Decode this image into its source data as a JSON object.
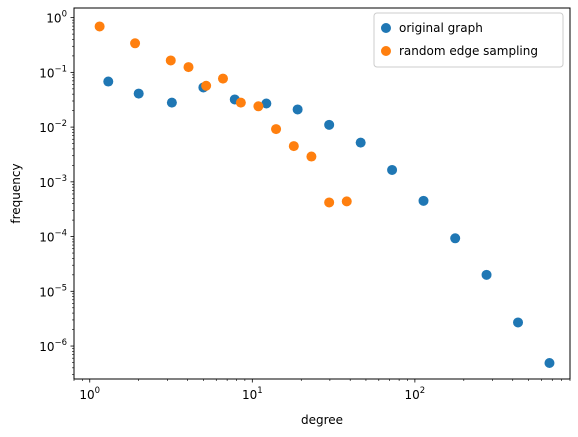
{
  "chart_data": {
    "type": "scatter",
    "title": "",
    "xlabel": "degree",
    "ylabel": "frequency",
    "xscale": "log",
    "yscale": "log",
    "xlim": [
      0.8,
      900
    ],
    "ylim": [
      2.5e-07,
      1.5
    ],
    "grid": false,
    "legend_position": "top-right",
    "x_ticks": [
      {
        "value": 1,
        "base": "10",
        "exp": "0"
      },
      {
        "value": 10,
        "base": "10",
        "exp": "1"
      },
      {
        "value": 100,
        "base": "10",
        "exp": "2"
      }
    ],
    "y_ticks": [
      {
        "value": 1e-06,
        "base": "10",
        "exp": "−6"
      },
      {
        "value": 1e-05,
        "base": "10",
        "exp": "−5"
      },
      {
        "value": 0.0001,
        "base": "10",
        "exp": "−4"
      },
      {
        "value": 0.001,
        "base": "10",
        "exp": "−3"
      },
      {
        "value": 0.01,
        "base": "10",
        "exp": "−2"
      },
      {
        "value": 0.1,
        "base": "10",
        "exp": "−1"
      },
      {
        "value": 1,
        "base": "10",
        "exp": "0"
      }
    ],
    "series": [
      {
        "name": "original graph",
        "color": "#1f77b4",
        "points": [
          {
            "x": 1.3,
            "y": 0.068
          },
          {
            "x": 2.0,
            "y": 0.041
          },
          {
            "x": 3.2,
            "y": 0.028
          },
          {
            "x": 5.0,
            "y": 0.053
          },
          {
            "x": 7.8,
            "y": 0.032
          },
          {
            "x": 12.2,
            "y": 0.027
          },
          {
            "x": 19.0,
            "y": 0.021
          },
          {
            "x": 29.7,
            "y": 0.011
          },
          {
            "x": 46.4,
            "y": 0.0052
          },
          {
            "x": 72.4,
            "y": 0.00165
          },
          {
            "x": 113,
            "y": 0.00045
          },
          {
            "x": 177,
            "y": 9.3e-05
          },
          {
            "x": 276,
            "y": 2e-05
          },
          {
            "x": 431,
            "y": 2.7e-06
          },
          {
            "x": 673,
            "y": 4.9e-07
          }
        ]
      },
      {
        "name": "random edge sampling",
        "color": "#ff7f0e",
        "points": [
          {
            "x": 1.15,
            "y": 0.69
          },
          {
            "x": 1.9,
            "y": 0.34
          },
          {
            "x": 3.15,
            "y": 0.165
          },
          {
            "x": 4.05,
            "y": 0.125
          },
          {
            "x": 5.2,
            "y": 0.057
          },
          {
            "x": 6.6,
            "y": 0.077
          },
          {
            "x": 8.5,
            "y": 0.028
          },
          {
            "x": 10.9,
            "y": 0.024
          },
          {
            "x": 14.0,
            "y": 0.0092
          },
          {
            "x": 18.0,
            "y": 0.0045
          },
          {
            "x": 23.1,
            "y": 0.0029
          },
          {
            "x": 29.7,
            "y": 0.00042
          },
          {
            "x": 38.1,
            "y": 0.00044
          }
        ]
      }
    ]
  }
}
